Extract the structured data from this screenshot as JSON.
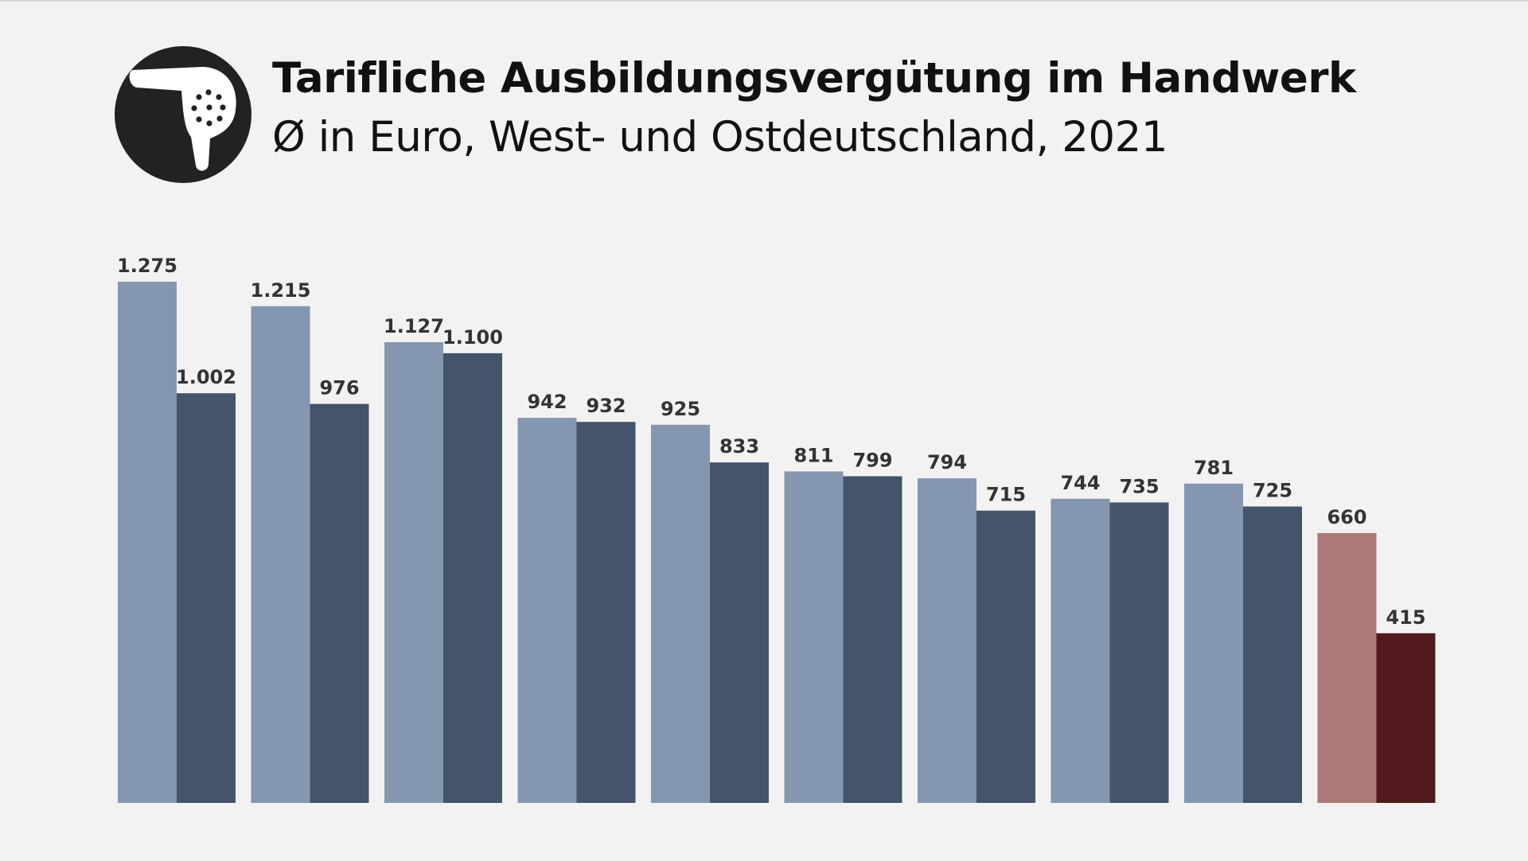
{
  "header": {
    "title": "Tarifliche Ausbildungsvergütung im Handwerk",
    "subtitle": "Ø in Euro, West- und Ostdeutschland, 2021",
    "icon": "hair-dryer-icon"
  },
  "chart_data": {
    "type": "bar",
    "title": "Tarifliche Ausbildungsvergütung im Handwerk",
    "subtitle": "Ø in Euro, West- und Ostdeutschland, 2021",
    "categories": [
      "",
      "",
      "",
      "",
      "",
      "",
      "",
      "",
      "",
      ""
    ],
    "series": [
      {
        "values": [
          1275,
          1215,
          1127,
          942,
          925,
          811,
          794,
          744,
          781,
          660
        ],
        "labels": [
          "1.275",
          "1.215",
          "1.127",
          "942",
          "925",
          "811",
          "794",
          "744",
          "781",
          "660"
        ]
      },
      {
        "values": [
          1002,
          976,
          1100,
          932,
          833,
          799,
          715,
          735,
          725,
          415
        ],
        "labels": [
          "1.002",
          "976",
          "1.100",
          "932",
          "833",
          "799",
          "715",
          "735",
          "725",
          "415"
        ]
      }
    ],
    "colors": {
      "series_1": "#8497b0",
      "series_2": "#44546a",
      "highlight_1": "#ad7878",
      "highlight_2": "#521a1c",
      "highlight_index": 9
    },
    "ylim": [
      0,
      1275
    ],
    "grid": false,
    "legend": "none"
  }
}
